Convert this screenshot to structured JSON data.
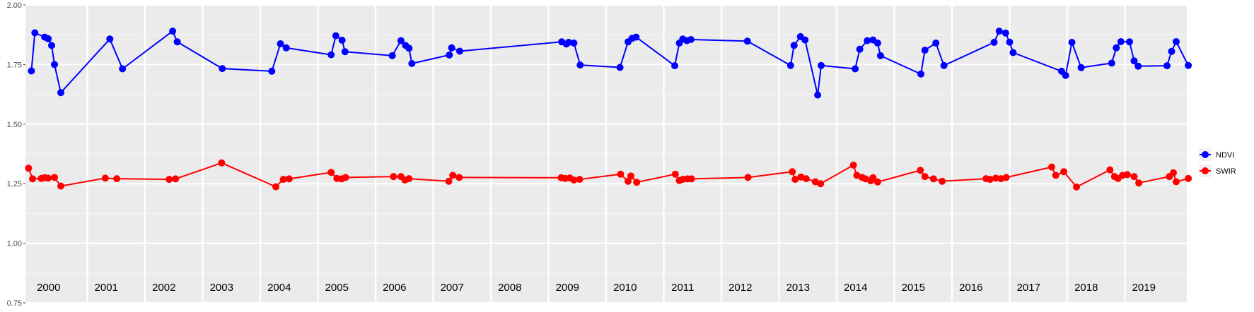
{
  "chart_data": {
    "type": "line",
    "title": "",
    "xlabel": "",
    "ylabel": "",
    "ylim": [
      0.75,
      2.0
    ],
    "y_ticks": [
      0.75,
      1.0,
      1.25,
      1.5,
      1.75,
      2.0
    ],
    "y_tick_labels": [
      "0.75",
      "1.00",
      "1.25",
      "1.50",
      "1.75",
      "2.00"
    ],
    "x_range": [
      2000.0,
      2020.0
    ],
    "year_labels": [
      "2000",
      "2001",
      "2002",
      "2003",
      "2004",
      "2005",
      "2006",
      "2007",
      "2008",
      "2009",
      "2010",
      "2011",
      "2012",
      "2013",
      "2014",
      "2015",
      "2016",
      "2017",
      "2018",
      "2019"
    ],
    "grid": true,
    "legend_position": "right",
    "series": [
      {
        "name": "NDVI",
        "color": "#0000ff",
        "points": [
          [
            2000.03,
            1.723
          ],
          [
            2000.09,
            1.883
          ],
          [
            2000.26,
            1.865
          ],
          [
            2000.32,
            1.858
          ],
          [
            2000.38,
            1.83
          ],
          [
            2000.43,
            1.75
          ],
          [
            2000.54,
            1.632
          ],
          [
            2001.39,
            1.857
          ],
          [
            2001.61,
            1.732
          ],
          [
            2002.48,
            1.89
          ],
          [
            2002.56,
            1.845
          ],
          [
            2003.34,
            1.733
          ],
          [
            2004.2,
            1.722
          ],
          [
            2004.35,
            1.837
          ],
          [
            2004.45,
            1.82
          ],
          [
            2005.23,
            1.791
          ],
          [
            2005.31,
            1.871
          ],
          [
            2005.42,
            1.852
          ],
          [
            2005.47,
            1.804
          ],
          [
            2006.29,
            1.787
          ],
          [
            2006.44,
            1.85
          ],
          [
            2006.52,
            1.83
          ],
          [
            2006.58,
            1.818
          ],
          [
            2006.63,
            1.754
          ],
          [
            2007.28,
            1.79
          ],
          [
            2007.32,
            1.82
          ],
          [
            2007.46,
            1.806
          ],
          [
            2009.23,
            1.845
          ],
          [
            2009.31,
            1.836
          ],
          [
            2009.35,
            1.843
          ],
          [
            2009.44,
            1.84
          ],
          [
            2009.55,
            1.748
          ],
          [
            2010.24,
            1.738
          ],
          [
            2010.38,
            1.845
          ],
          [
            2010.45,
            1.86
          ],
          [
            2010.52,
            1.865
          ],
          [
            2011.19,
            1.745
          ],
          [
            2011.27,
            1.84
          ],
          [
            2011.33,
            1.857
          ],
          [
            2011.4,
            1.85
          ],
          [
            2011.47,
            1.855
          ],
          [
            2012.45,
            1.848
          ],
          [
            2013.2,
            1.746
          ],
          [
            2013.26,
            1.83
          ],
          [
            2013.37,
            1.867
          ],
          [
            2013.45,
            1.853
          ],
          [
            2013.67,
            1.622
          ],
          [
            2013.73,
            1.746
          ],
          [
            2014.32,
            1.732
          ],
          [
            2014.4,
            1.814
          ],
          [
            2014.53,
            1.85
          ],
          [
            2014.63,
            1.853
          ],
          [
            2014.71,
            1.84
          ],
          [
            2014.76,
            1.787
          ],
          [
            2015.46,
            1.71
          ],
          [
            2015.53,
            1.81
          ],
          [
            2015.72,
            1.84
          ],
          [
            2015.86,
            1.746
          ],
          [
            2016.73,
            1.843
          ],
          [
            2016.82,
            1.89
          ],
          [
            2016.93,
            1.882
          ],
          [
            2017.0,
            1.844
          ],
          [
            2017.06,
            1.8
          ],
          [
            2017.9,
            1.722
          ],
          [
            2017.97,
            1.704
          ],
          [
            2018.08,
            1.843
          ],
          [
            2018.24,
            1.737
          ],
          [
            2018.77,
            1.756
          ],
          [
            2018.85,
            1.82
          ],
          [
            2018.93,
            1.846
          ],
          [
            2019.08,
            1.845
          ],
          [
            2019.16,
            1.765
          ],
          [
            2019.23,
            1.743
          ],
          [
            2019.73,
            1.745
          ],
          [
            2019.81,
            1.805
          ],
          [
            2019.89,
            1.846
          ],
          [
            2020.1,
            1.746
          ]
        ]
      },
      {
        "name": "SWIR",
        "color": "#ff0000",
        "points": [
          [
            1999.98,
            1.315
          ],
          [
            2000.05,
            1.27
          ],
          [
            2000.2,
            1.272
          ],
          [
            2000.26,
            1.275
          ],
          [
            2000.32,
            1.273
          ],
          [
            2000.43,
            1.276
          ],
          [
            2000.54,
            1.24
          ],
          [
            2001.31,
            1.273
          ],
          [
            2001.51,
            1.271
          ],
          [
            2002.42,
            1.268
          ],
          [
            2002.53,
            1.27
          ],
          [
            2003.33,
            1.337
          ],
          [
            2004.27,
            1.237
          ],
          [
            2004.4,
            1.268
          ],
          [
            2004.5,
            1.27
          ],
          [
            2005.23,
            1.297
          ],
          [
            2005.33,
            1.272
          ],
          [
            2005.41,
            1.27
          ],
          [
            2005.48,
            1.276
          ],
          [
            2006.31,
            1.28
          ],
          [
            2006.44,
            1.28
          ],
          [
            2006.51,
            1.265
          ],
          [
            2006.58,
            1.271
          ],
          [
            2007.27,
            1.26
          ],
          [
            2007.34,
            1.285
          ],
          [
            2007.45,
            1.276
          ],
          [
            2009.22,
            1.275
          ],
          [
            2009.29,
            1.272
          ],
          [
            2009.37,
            1.274
          ],
          [
            2009.44,
            1.265
          ],
          [
            2009.54,
            1.268
          ],
          [
            2010.25,
            1.29
          ],
          [
            2010.38,
            1.26
          ],
          [
            2010.43,
            1.282
          ],
          [
            2010.53,
            1.256
          ],
          [
            2011.2,
            1.29
          ],
          [
            2011.27,
            1.263
          ],
          [
            2011.33,
            1.268
          ],
          [
            2011.41,
            1.27
          ],
          [
            2011.48,
            1.27
          ],
          [
            2012.46,
            1.276
          ],
          [
            2013.23,
            1.3
          ],
          [
            2013.28,
            1.268
          ],
          [
            2013.38,
            1.278
          ],
          [
            2013.47,
            1.271
          ],
          [
            2013.63,
            1.258
          ],
          [
            2013.72,
            1.25
          ],
          [
            2014.29,
            1.328
          ],
          [
            2014.35,
            1.285
          ],
          [
            2014.44,
            1.276
          ],
          [
            2014.5,
            1.27
          ],
          [
            2014.59,
            1.262
          ],
          [
            2014.63,
            1.275
          ],
          [
            2014.71,
            1.257
          ],
          [
            2015.45,
            1.306
          ],
          [
            2015.53,
            1.28
          ],
          [
            2015.68,
            1.27
          ],
          [
            2015.83,
            1.26
          ],
          [
            2016.59,
            1.271
          ],
          [
            2016.66,
            1.268
          ],
          [
            2016.76,
            1.273
          ],
          [
            2016.85,
            1.271
          ],
          [
            2016.94,
            1.276
          ],
          [
            2017.73,
            1.32
          ],
          [
            2017.8,
            1.285
          ],
          [
            2017.94,
            1.3
          ],
          [
            2018.16,
            1.236
          ],
          [
            2018.74,
            1.308
          ],
          [
            2018.82,
            1.28
          ],
          [
            2018.88,
            1.272
          ],
          [
            2018.96,
            1.285
          ],
          [
            2019.04,
            1.288
          ],
          [
            2019.16,
            1.28
          ],
          [
            2019.24,
            1.253
          ],
          [
            2019.77,
            1.28
          ],
          [
            2019.84,
            1.296
          ],
          [
            2019.89,
            1.258
          ],
          [
            2020.1,
            1.272
          ]
        ]
      }
    ]
  }
}
